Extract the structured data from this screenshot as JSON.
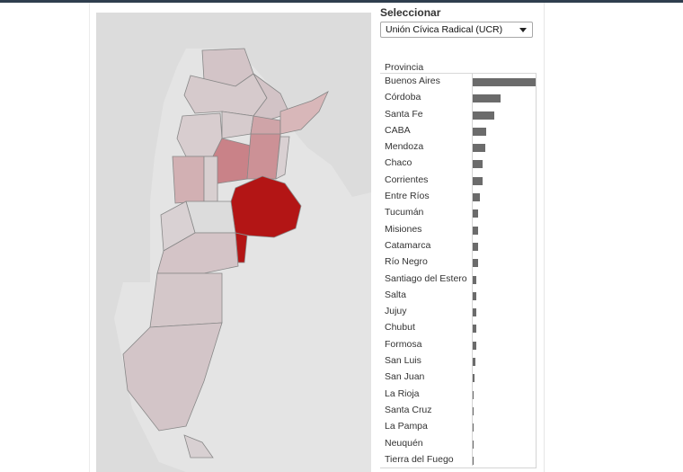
{
  "filter": {
    "title": "Seleccionar",
    "selected": "Unión Cívica Radical (UCR)"
  },
  "table": {
    "column_header": "Provincia"
  },
  "colors": {
    "bar": "#6b6b6b",
    "map_highlight": "#b31515",
    "map_base": "#d4c9cb",
    "map_background": "#e4e4e4"
  },
  "chart_data": {
    "type": "bar",
    "orientation": "horizontal",
    "categories": [
      "Buenos Aires",
      "Córdoba",
      "Santa Fe",
      "CABA",
      "Mendoza",
      "Chaco",
      "Corrientes",
      "Entre Ríos",
      "Tucumán",
      "Misiones",
      "Catamarca",
      "Río Negro",
      "Santiago del Estero",
      "Salta",
      "Jujuy",
      "Chubut",
      "Formosa",
      "San Luis",
      "San Juan",
      "La Rioja",
      "Santa Cruz",
      "La Pampa",
      "Neuquén",
      "Tierra del Fuego"
    ],
    "values": [
      100,
      44,
      34,
      22,
      20,
      16,
      15,
      11,
      9,
      8,
      8,
      8,
      6,
      6,
      6,
      6,
      5,
      4,
      3,
      2,
      2,
      1,
      2,
      1
    ],
    "xlim": [
      0,
      100
    ]
  }
}
